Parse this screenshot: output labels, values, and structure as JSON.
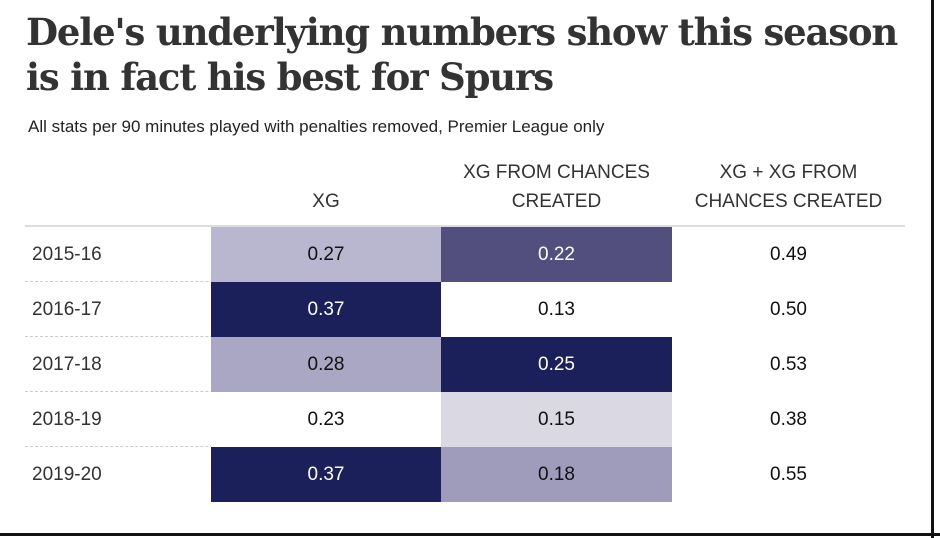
{
  "title": "Dele's underlying numbers show this season is in fact his best for Spurs",
  "subtitle": "All stats per 90 minutes played with penalties removed, Premier League only",
  "chart_data": {
    "type": "table",
    "columns": [
      "XG",
      "XG FROM CHANCES CREATED",
      "XG + XG FROM CHANCES CREATED"
    ],
    "rows": [
      {
        "season": "2015-16",
        "values": [
          "0.27",
          "0.22",
          "0.49"
        ],
        "colors": [
          "#b9b7cf",
          "#524f7e",
          "#ffffff"
        ]
      },
      {
        "season": "2016-17",
        "values": [
          "0.37",
          "0.13",
          "0.50"
        ],
        "colors": [
          "#1b1f5a",
          "#ffffff",
          "#ffffff"
        ]
      },
      {
        "season": "2017-18",
        "values": [
          "0.28",
          "0.25",
          "0.53"
        ],
        "colors": [
          "#aaa7c4",
          "#1b1f5a",
          "#ffffff"
        ]
      },
      {
        "season": "2018-19",
        "values": [
          "0.23",
          "0.15",
          "0.38"
        ],
        "colors": [
          "#ffffff",
          "#d9d8e3",
          "#ffffff"
        ]
      },
      {
        "season": "2019-20",
        "values": [
          "0.37",
          "0.18",
          "0.55"
        ],
        "colors": [
          "#1b1f5a",
          "#9f9bbb",
          "#ffffff"
        ]
      }
    ]
  }
}
